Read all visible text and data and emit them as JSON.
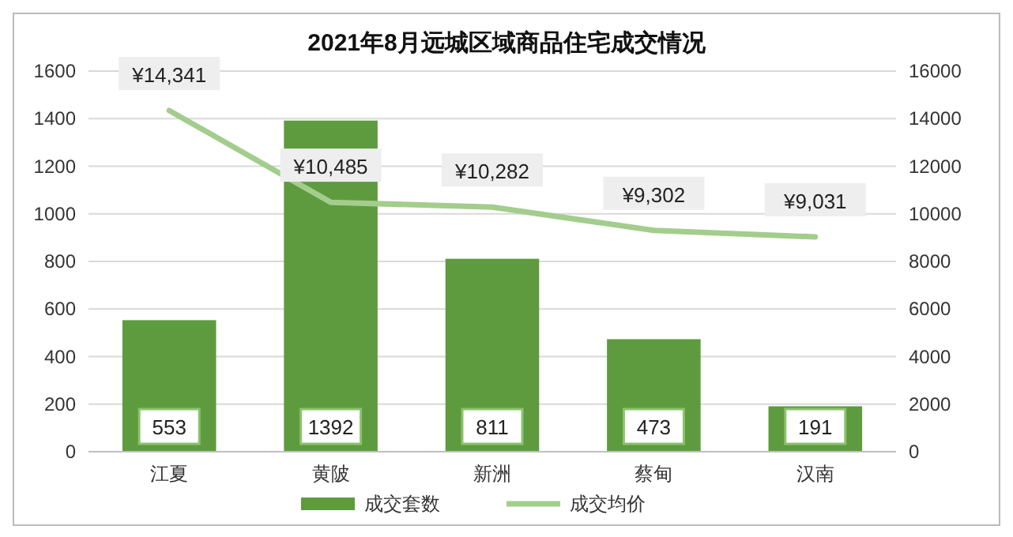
{
  "chart_data": {
    "type": "bar",
    "title": "2021年8月远城区域商品住宅成交情况",
    "categories": [
      "江夏",
      "黄陂",
      "新洲",
      "蔡甸",
      "汉南"
    ],
    "series": [
      {
        "name": "成交套数",
        "color": "#5e9b3e",
        "values": [
          553,
          1392,
          811,
          473,
          191
        ],
        "value_labels": [
          "553",
          "1392",
          "811",
          "473",
          "191"
        ]
      },
      {
        "name": "成交均价",
        "type": "line",
        "axis": "y2",
        "color": "#a3cd8c",
        "values": [
          14341,
          10485,
          10282,
          9302,
          9031
        ],
        "value_labels": [
          "¥14,341",
          "¥10,485",
          "¥10,282",
          "¥9,302",
          "¥9,031"
        ]
      }
    ],
    "ylim": [
      0,
      1600
    ],
    "yticks": [
      0,
      200,
      400,
      600,
      800,
      1000,
      1200,
      1400,
      1600
    ],
    "y2lim": [
      0,
      16000
    ],
    "y2ticks": [
      0,
      2000,
      4000,
      6000,
      8000,
      10000,
      12000,
      14000,
      16000
    ],
    "grid": "y",
    "legend": "bottom",
    "marker": "none"
  }
}
